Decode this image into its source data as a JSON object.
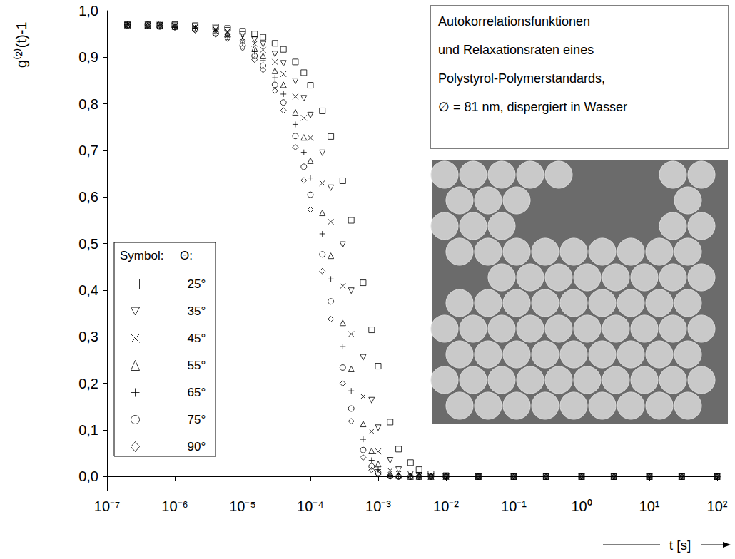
{
  "chart_data": {
    "type": "scatter",
    "annotation": [
      "Autokorrelationsfunktionen",
      "und Relaxationsraten eines",
      "Polystyrol-Polymerstandards,",
      "∅ = 81 nm, dispergiert in Wasser"
    ],
    "y_label": "g⁽²⁾(t)-1",
    "x_label": "t [s]",
    "log": "x",
    "grid": false,
    "legend": "lower left",
    "legend_headers": [
      "Symbol:",
      "Θ:"
    ],
    "xlim": [
      1e-07,
      100
    ],
    "xticks": [
      {
        "value": 1e-07,
        "label": "10⁻⁷"
      },
      {
        "value": 1e-06,
        "label": "10⁻⁶"
      },
      {
        "value": 1e-05,
        "label": "10⁻⁵"
      },
      {
        "value": 0.0001,
        "label": "10⁻⁴"
      },
      {
        "value": 0.001,
        "label": "10⁻³"
      },
      {
        "value": 0.01,
        "label": "10⁻²"
      },
      {
        "value": 0.1,
        "label": "10⁻¹"
      },
      {
        "value": 1,
        "label": "10⁰"
      },
      {
        "value": 10,
        "label": "10¹"
      },
      {
        "value": 100,
        "label": "10²"
      }
    ],
    "ylim": [
      -0.03,
      1.0
    ],
    "yticks": [
      {
        "value": 0,
        "label": "0,0"
      },
      {
        "value": 0.1,
        "label": "0,1"
      },
      {
        "value": 0.2,
        "label": "0,2"
      },
      {
        "value": 0.3,
        "label": "0,3"
      },
      {
        "value": 0.4,
        "label": "0,4"
      },
      {
        "value": 0.5,
        "label": "0,5"
      },
      {
        "value": 0.6,
        "label": "0,6"
      },
      {
        "value": 0.7,
        "label": "0,7"
      },
      {
        "value": 0.8,
        "label": "0,8"
      },
      {
        "value": 0.9,
        "label": "0,9"
      },
      {
        "value": 1.0,
        "label": "1,0"
      }
    ],
    "x": [
      2e-07,
      4e-07,
      6e-07,
      1e-06,
      2e-06,
      4e-06,
      6e-06,
      1e-05,
      1.5e-05,
      2e-05,
      3e-05,
      4e-05,
      6e-05,
      8e-05,
      0.0001,
      0.00015,
      0.0002,
      0.0003,
      0.0004,
      0.0006,
      0.0008,
      0.001,
      0.0015,
      0.002,
      0.003,
      0.004,
      0.006,
      0.01,
      0.03,
      0.1,
      0.3,
      1,
      3,
      10,
      30,
      100
    ],
    "series": [
      {
        "name": "25°",
        "color": "#000000",
        "marker": "square",
        "values": [
          0.97,
          0.968,
          0.969,
          0.97,
          0.968,
          0.965,
          0.962,
          0.956,
          0.95,
          0.943,
          0.93,
          0.917,
          0.89,
          0.867,
          0.84,
          0.785,
          0.73,
          0.635,
          0.55,
          0.416,
          0.315,
          0.237,
          0.117,
          0.059,
          0.03,
          0.015,
          0.006,
          0.002,
          0,
          0,
          0,
          0,
          0,
          0,
          0,
          0
        ]
      },
      {
        "name": "35°",
        "color": "#000000",
        "marker": "triangle-down",
        "values": [
          0.969,
          0.97,
          0.968,
          0.968,
          0.966,
          0.962,
          0.958,
          0.949,
          0.938,
          0.928,
          0.907,
          0.887,
          0.849,
          0.812,
          0.776,
          0.695,
          0.62,
          0.498,
          0.399,
          0.256,
          0.164,
          0.105,
          0.035,
          0.015,
          0.006,
          0.003,
          0.001,
          0,
          0,
          0,
          0,
          0,
          0,
          0,
          0,
          0
        ]
      },
      {
        "name": "45°",
        "color": "#000000",
        "marker": "x",
        "values": [
          0.97,
          0.968,
          0.97,
          0.967,
          0.965,
          0.96,
          0.955,
          0.942,
          0.929,
          0.916,
          0.89,
          0.864,
          0.816,
          0.77,
          0.727,
          0.63,
          0.547,
          0.409,
          0.306,
          0.172,
          0.097,
          0.054,
          0.013,
          0.006,
          0.002,
          0.001,
          0,
          0,
          0,
          0,
          0,
          0,
          0,
          0,
          0,
          0
        ]
      },
      {
        "name": "55°",
        "color": "#000000",
        "marker": "triangle",
        "values": [
          0.968,
          0.969,
          0.967,
          0.966,
          0.963,
          0.957,
          0.95,
          0.936,
          0.919,
          0.903,
          0.871,
          0.841,
          0.782,
          0.728,
          0.678,
          0.566,
          0.474,
          0.33,
          0.231,
          0.113,
          0.055,
          0.027,
          0.005,
          0.002,
          0,
          0,
          0,
          0,
          0,
          0,
          0,
          0,
          0,
          0,
          0,
          0
        ]
      },
      {
        "name": "65°",
        "color": "#000000",
        "marker": "plus",
        "values": [
          0.97,
          0.967,
          0.968,
          0.965,
          0.962,
          0.955,
          0.947,
          0.931,
          0.912,
          0.893,
          0.856,
          0.821,
          0.756,
          0.696,
          0.641,
          0.521,
          0.424,
          0.279,
          0.184,
          0.08,
          0.035,
          0.015,
          0.003,
          0.001,
          0,
          0,
          0,
          0,
          0,
          0,
          0,
          0,
          0,
          0,
          0,
          0
        ]
      },
      {
        "name": "75°",
        "color": "#000000",
        "marker": "circle",
        "values": [
          0.968,
          0.97,
          0.966,
          0.965,
          0.96,
          0.952,
          0.944,
          0.925,
          0.903,
          0.882,
          0.841,
          0.803,
          0.731,
          0.665,
          0.605,
          0.477,
          0.376,
          0.234,
          0.146,
          0.057,
          0.022,
          0.008,
          0.001,
          0,
          0,
          0,
          0,
          0,
          0,
          0,
          0,
          0,
          0,
          0,
          0,
          0
        ]
      },
      {
        "name": "90°",
        "color": "#000000",
        "marker": "diamond",
        "values": [
          0.97,
          0.968,
          0.972,
          0.964,
          0.958,
          0.949,
          0.94,
          0.92,
          0.895,
          0.873,
          0.828,
          0.786,
          0.707,
          0.636,
          0.573,
          0.441,
          0.338,
          0.2,
          0.119,
          0.041,
          0.014,
          0.005,
          0,
          0,
          0,
          0,
          0,
          0,
          0,
          0,
          0,
          0,
          0,
          0,
          0,
          0
        ]
      }
    ]
  }
}
